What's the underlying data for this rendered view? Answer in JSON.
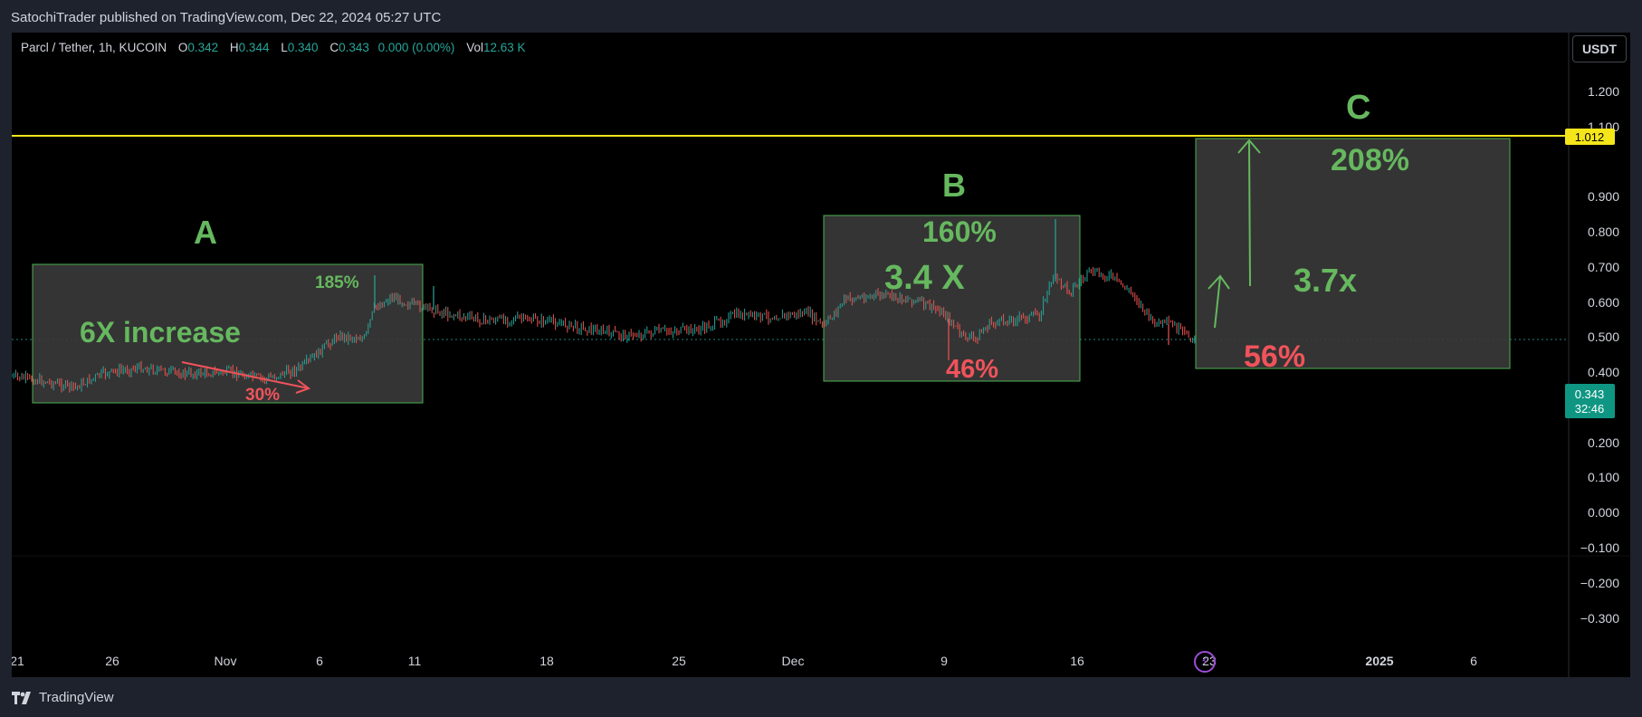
{
  "publisher": "SatochiTrader published on TradingView.com, Dec 22, 2024 05:27 UTC",
  "symbol": {
    "name": "Parcl / Tether, 1h, KUCOIN",
    "open_label": "O",
    "open": "0.342",
    "high_label": "H",
    "high": "0.344",
    "low_label": "L",
    "low": "0.340",
    "close_label": "C",
    "close": "0.343",
    "change": "0.000 (0.00%)",
    "vol_label": "Vol",
    "vol": "12.63 K"
  },
  "currency_button": "USDT",
  "price_axis": {
    "ticks": [
      "1.200",
      "1.100",
      "1.012",
      "0.900",
      "0.800",
      "0.700",
      "0.600",
      "0.500",
      "0.400",
      "0.343",
      "0.200",
      "0.100",
      "0.000",
      "−0.100",
      "−0.200",
      "−0.300"
    ],
    "resistance_label": "1.012",
    "last_price_label": "0.343",
    "countdown_label": "32:46"
  },
  "time_axis": {
    "ticks": [
      "21",
      "26",
      "Nov",
      "6",
      "11",
      "18",
      "25",
      "Dec",
      "9",
      "16",
      "23",
      "2025",
      "6"
    ],
    "bold_tick": "2025"
  },
  "annotations": {
    "a_label": "A",
    "a_increase": "6X increase",
    "a_pct": "185%",
    "a_drop": "30%",
    "b_label": "B",
    "b_pct": "160%",
    "b_mult": "3.4 X",
    "b_drop": "46%",
    "c_label": "C",
    "c_pct": "208%",
    "c_mult": "3.7x",
    "c_drop": "56%"
  },
  "colors": {
    "background": "#000000",
    "frame": "#1e222d",
    "up": "#26a69a",
    "down": "#ef5350",
    "resistance": "#f5e51b",
    "annotation_green": "#66b85f",
    "annotation_red": "#f0535b",
    "box_fill": "#3a3a3a",
    "box_border": "#4caf50"
  },
  "footer": {
    "logo_icon": "tradingview-logo-icon",
    "brand": "TradingView"
  }
}
